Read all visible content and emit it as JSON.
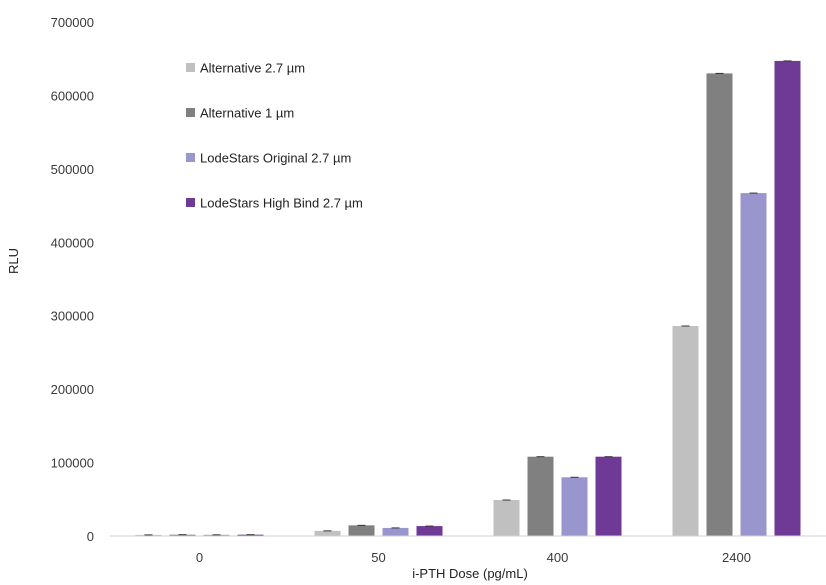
{
  "chart_data": {
    "type": "bar",
    "title": "",
    "xlabel": "i-PTH Dose (pg/mL)",
    "ylabel": "RLU",
    "ylim": [
      0,
      700000
    ],
    "yticks": [
      0,
      100000,
      200000,
      300000,
      400000,
      500000,
      600000,
      700000
    ],
    "ytick_labels": [
      "0",
      "100000",
      "200000",
      "300000",
      "400000",
      "500000",
      "600000",
      "700000"
    ],
    "grid": false,
    "legend_position": "top-left",
    "categories": [
      "0",
      "50",
      "400",
      "2400"
    ],
    "series": [
      {
        "name": "Alternative 2.7  µm",
        "color": "#c0c0c0",
        "values": [
          1500,
          7000,
          49000,
          286000
        ]
      },
      {
        "name": "Alternative 1 µm",
        "color": "#808080",
        "values": [
          1800,
          14500,
          108000,
          630000
        ]
      },
      {
        "name": "LodeStars Original 2.7  µm",
        "color": "#9896cc",
        "values": [
          1600,
          11000,
          80000,
          467000
        ]
      },
      {
        "name": "LodeStars High Bind 2.7  µm",
        "color": "#6f3996",
        "values": [
          1800,
          13500,
          108000,
          647000
        ]
      }
    ]
  }
}
